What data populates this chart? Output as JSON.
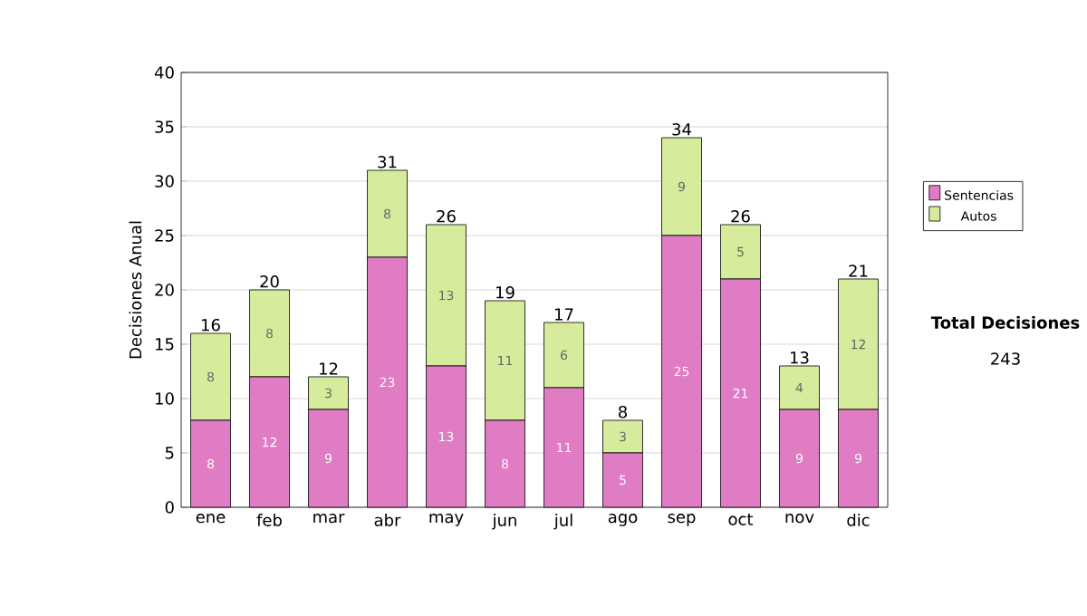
{
  "chart_data": {
    "type": "bar",
    "stacked": true,
    "ylabel": "Decisiones Anual",
    "categories": [
      "ene",
      "feb",
      "mar",
      "abr",
      "may",
      "jun",
      "jul",
      "ago",
      "sep",
      "oct",
      "nov",
      "dic"
    ],
    "series": [
      {
        "name": "Sentencias",
        "color": "#e07cc4",
        "values": [
          8,
          12,
          9,
          23,
          13,
          8,
          11,
          5,
          25,
          21,
          9,
          9
        ]
      },
      {
        "name": "Autos",
        "color": "#d6ec9c",
        "values": [
          8,
          8,
          3,
          8,
          13,
          11,
          6,
          3,
          9,
          5,
          4,
          12
        ]
      }
    ],
    "totals": [
      "16",
      "20",
      "12",
      "31",
      "26",
      "19",
      "17",
      "8",
      "34",
      "26",
      "13",
      "21"
    ],
    "data_labels": true,
    "ylim": [
      0,
      40
    ],
    "yticks": [
      0,
      5,
      10,
      15,
      20,
      25,
      30,
      35,
      40
    ],
    "grid": "y",
    "legend": "right",
    "annotations": [
      "Total Decisiones",
      "243"
    ]
  }
}
